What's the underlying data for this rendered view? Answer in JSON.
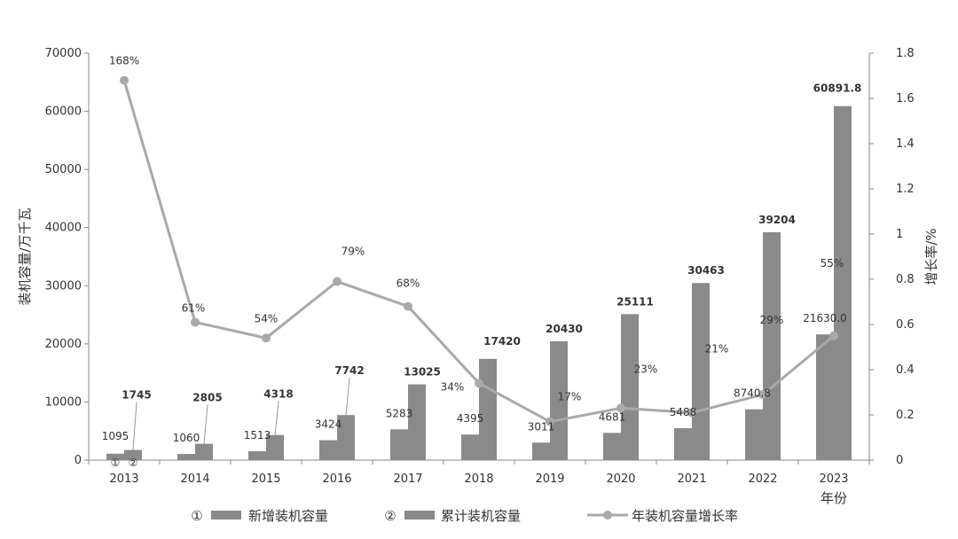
{
  "chart_data": {
    "type": "bar",
    "categories": [
      "2013",
      "2014",
      "2015",
      "2016",
      "2017",
      "2018",
      "2019",
      "2020",
      "2021",
      "2022",
      "2023"
    ],
    "series": [
      {
        "name": "新增装机容量",
        "kind": "bar",
        "axis": "left",
        "values": [
          1095,
          1060,
          1513,
          3424,
          5283,
          4395,
          3011,
          4681,
          5488,
          8740.8,
          21630.0
        ],
        "labels": [
          "1095",
          "1060",
          "1513",
          "3424",
          "5283",
          "4395",
          "3011",
          "4681",
          "5488",
          "8740.8",
          "21630.0"
        ]
      },
      {
        "name": "累计装机容量",
        "kind": "bar",
        "axis": "left",
        "values": [
          1745,
          2805,
          4318,
          7742,
          13025,
          17420,
          20430,
          25111,
          30463,
          39204,
          60891.8
        ],
        "labels": [
          "1745",
          "2805",
          "4318",
          "7742",
          "13025",
          "17420",
          "20430",
          "25111",
          "30463",
          "39204",
          "60891.8"
        ]
      },
      {
        "name": "年装机容量增长率",
        "kind": "line",
        "axis": "right",
        "values": [
          1.68,
          0.61,
          0.54,
          0.79,
          0.68,
          0.34,
          0.17,
          0.23,
          0.21,
          0.29,
          0.55
        ],
        "labels": [
          "168%",
          "61%",
          "54%",
          "79%",
          "68%",
          "34%",
          "17%",
          "23%",
          "21%",
          "29%",
          "55%"
        ]
      }
    ],
    "ylabel": "装机容量/万千瓦",
    "y2label": "增长率/%",
    "xlabel": "年份",
    "ylim": [
      0,
      70000
    ],
    "yticks": [
      "0",
      "10000",
      "20000",
      "30000",
      "40000",
      "50000",
      "60000",
      "70000"
    ],
    "y2lim": [
      0,
      1.8
    ],
    "y2ticks": [
      "0",
      "0.2",
      "0.4",
      "0.6",
      "0.8",
      "1",
      "1.2",
      "1.4",
      "1.6",
      "1.8"
    ],
    "legend": {
      "placement": "bottom",
      "items": [
        {
          "marker": "①",
          "label": "新增装机容量"
        },
        {
          "marker": "②",
          "label": "累计装机容量"
        },
        {
          "marker": "",
          "label": "年装机容量增长率"
        }
      ]
    },
    "bar_markers": [
      "①",
      "②"
    ],
    "colors": {
      "bar": "#8a8a8a",
      "line": "#a9a9a9",
      "axis": "#888888",
      "text": "#333333"
    }
  }
}
